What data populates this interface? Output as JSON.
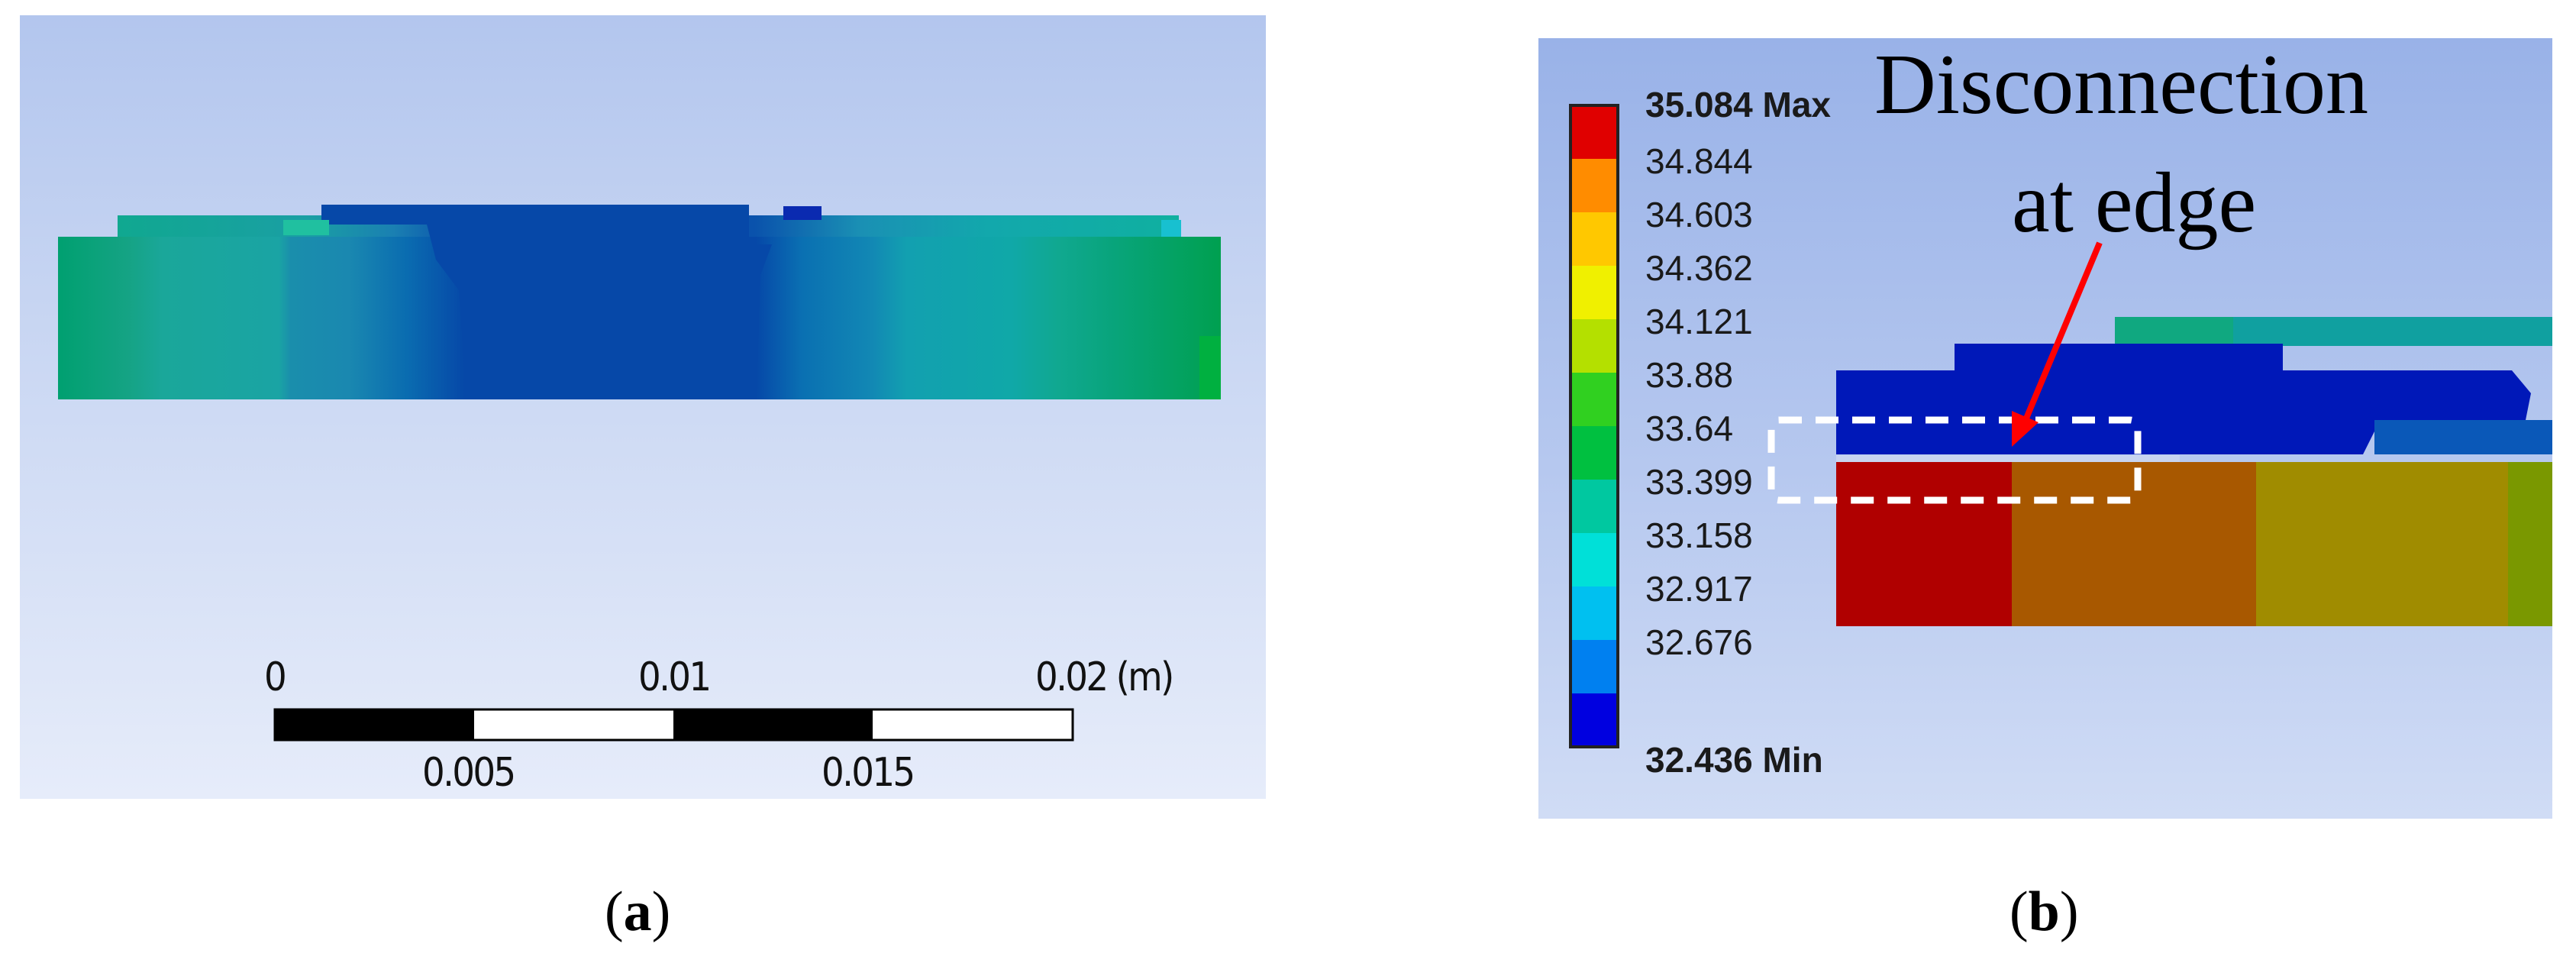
{
  "panel_a": {
    "scale_bar": {
      "top_labels": [
        "0",
        "0.01",
        "0.02 (m)"
      ],
      "bottom_labels": [
        "0.005",
        "0.015"
      ]
    },
    "caption_letter": "a"
  },
  "panel_b": {
    "legend": {
      "entries": [
        {
          "label": "35.084 Max",
          "color": "#e00000"
        },
        {
          "label": "34.844",
          "color": "#ff8c00"
        },
        {
          "label": "34.603",
          "color": "#ffc800"
        },
        {
          "label": "34.362",
          "color": "#f0f000"
        },
        {
          "label": "34.121",
          "color": "#b4e000"
        },
        {
          "label": "33.88",
          "color": "#30d020"
        },
        {
          "label": "33.64",
          "color": "#00c040"
        },
        {
          "label": "33.399",
          "color": "#00c8a0"
        },
        {
          "label": "33.158",
          "color": "#00e0d8"
        },
        {
          "label": "32.917",
          "color": "#00c0f0"
        },
        {
          "label": "32.676",
          "color": "#0080f0"
        },
        {
          "label": "32.436 Min",
          "color": "#0000e0"
        }
      ]
    },
    "annotation": {
      "line1": "Disconnection",
      "line2": "at edge"
    },
    "caption_letter": "b"
  },
  "colors": {
    "arrow": "#ff0000",
    "dashed_box": "#ffffff"
  }
}
